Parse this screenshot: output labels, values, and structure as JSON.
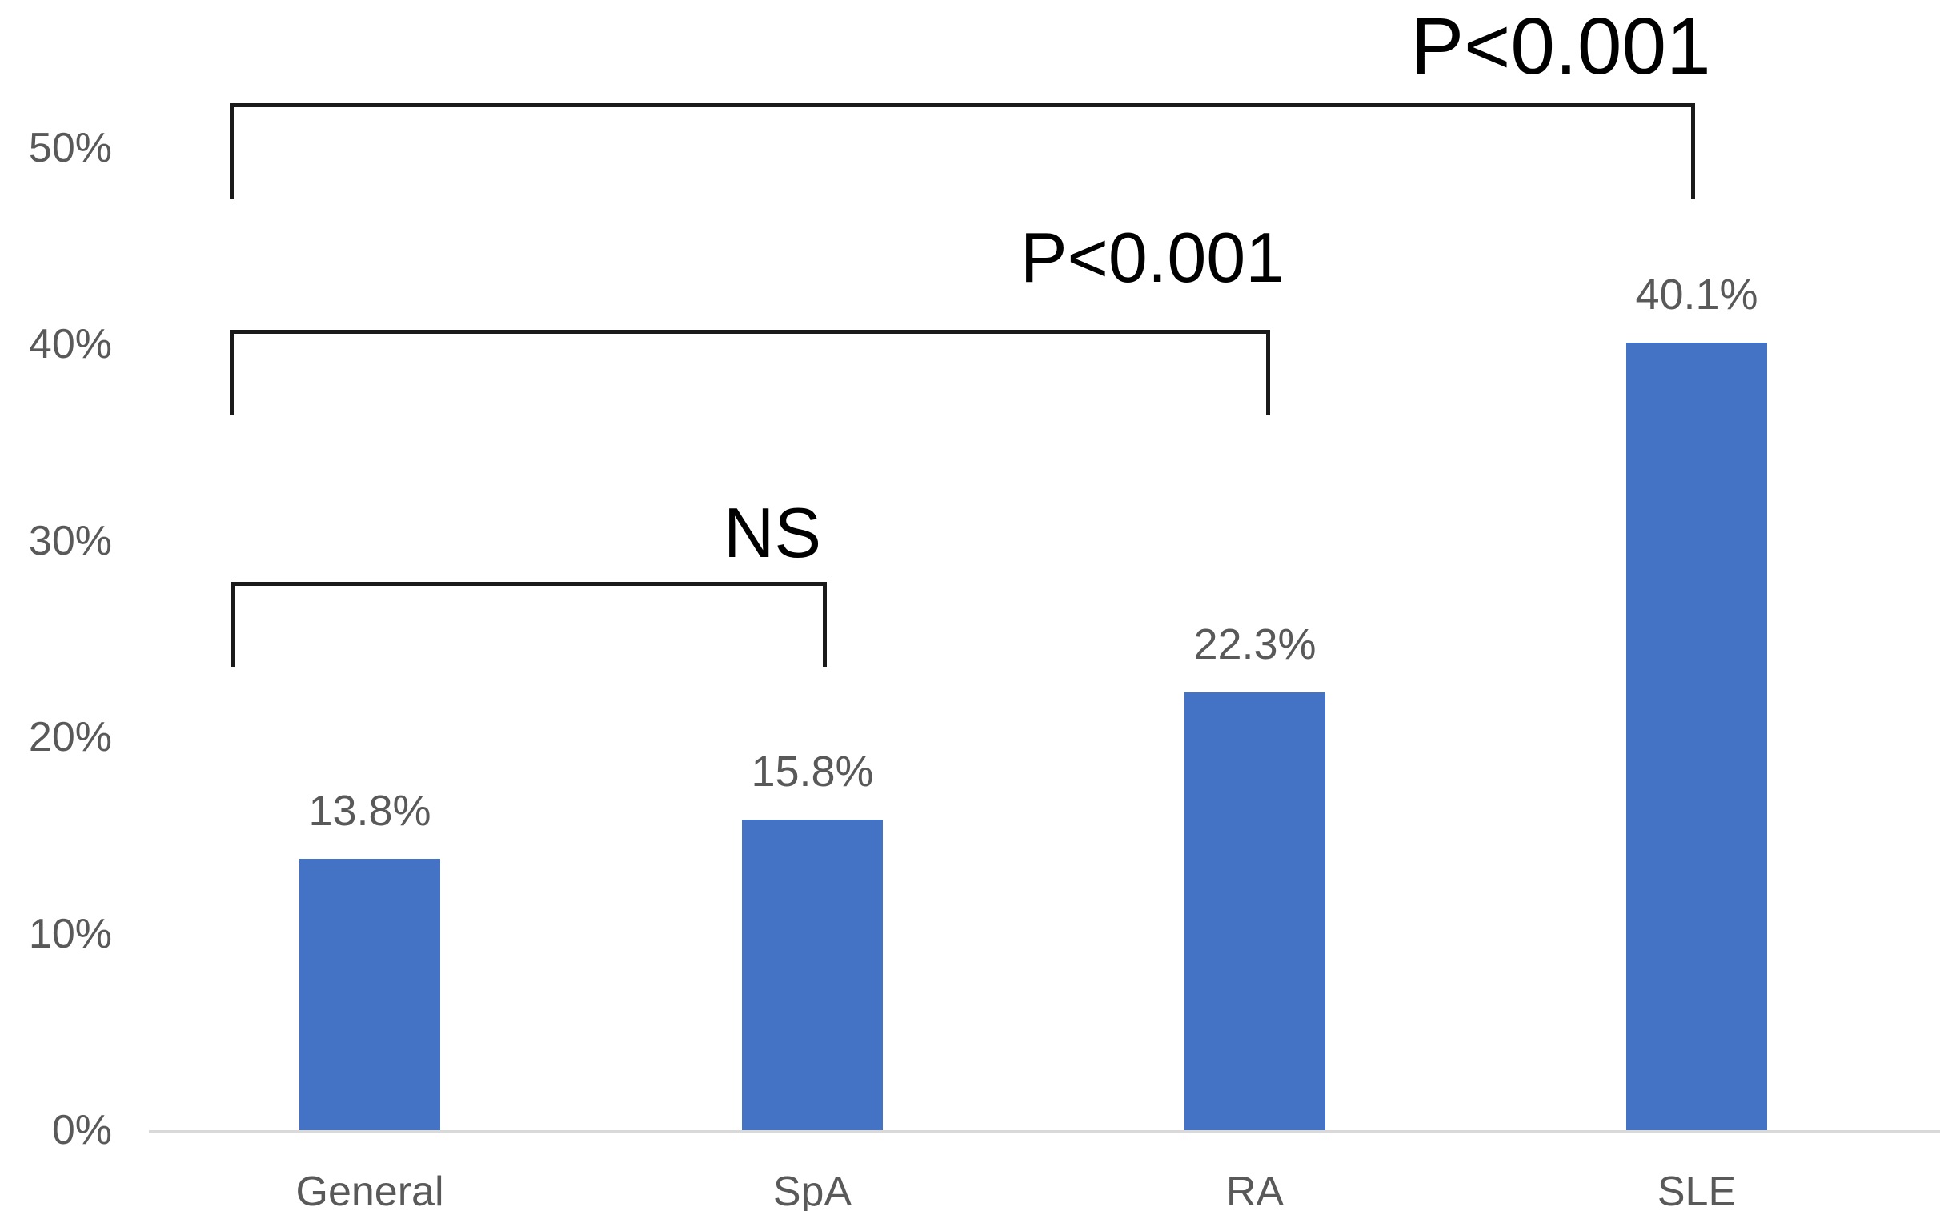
{
  "chart_data": {
    "type": "bar",
    "title": "",
    "xlabel": "",
    "ylabel": "",
    "categories": [
      "General",
      "SpA",
      "RA",
      "SLE"
    ],
    "values": [
      13.8,
      15.8,
      22.3,
      40.1
    ],
    "value_labels": [
      "13.8%",
      "15.8%",
      "22.3%",
      "40.1%"
    ],
    "ylim": [
      0,
      50
    ],
    "yticks": [
      0,
      10,
      20,
      30,
      40,
      50
    ],
    "ytick_labels": [
      "0%",
      "10%",
      "20%",
      "30%",
      "40%",
      "50%"
    ],
    "grid": false,
    "legend": null,
    "bar_color": "#4472C4",
    "axis_line_color": "#D9D9D9",
    "text_color": "#595959",
    "annotation_color": "#000000",
    "annotations": [
      {
        "type": "significance-bracket",
        "from": "General",
        "to": "SpA",
        "label": "NS"
      },
      {
        "type": "significance-bracket",
        "from": "General",
        "to": "RA",
        "label": "P<0.001"
      },
      {
        "type": "significance-bracket",
        "from": "General",
        "to": "SLE",
        "label": "P<0.001"
      }
    ]
  }
}
